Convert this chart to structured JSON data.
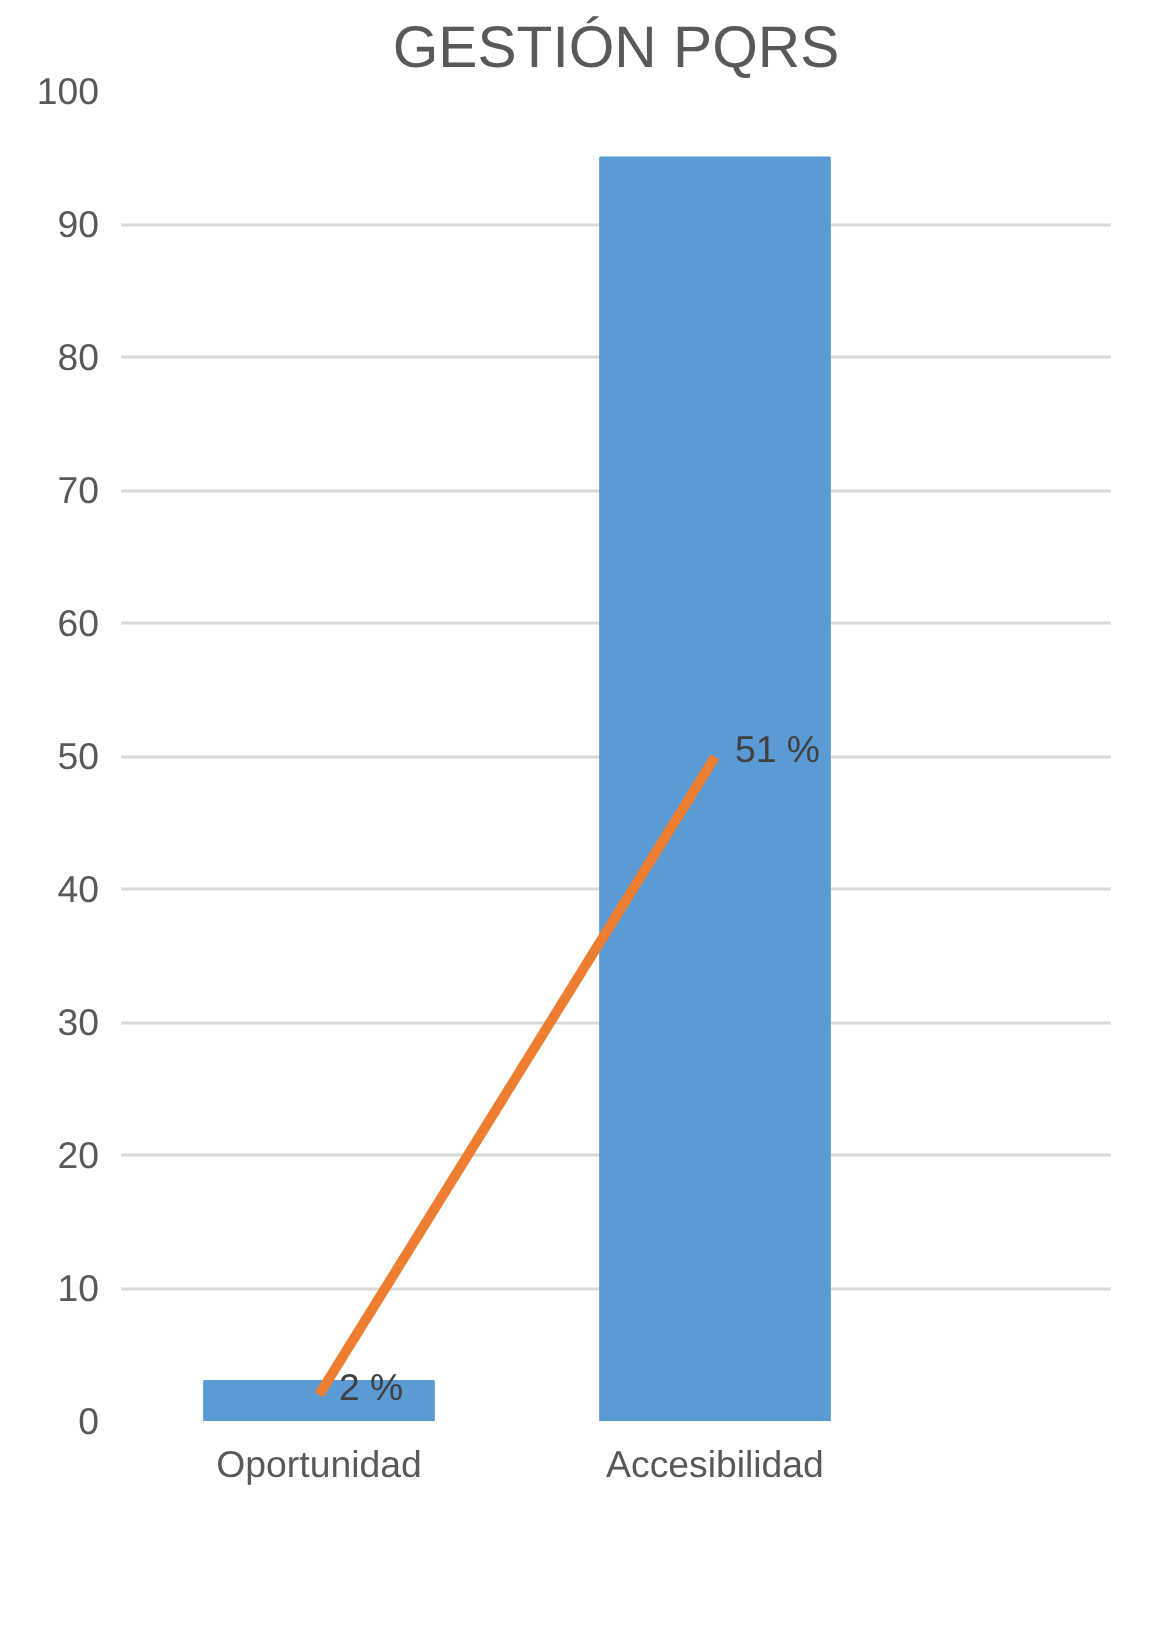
{
  "chart_data": {
    "type": "bar",
    "title": "GESTIÓN PQRS",
    "categories": [
      "Oportunidad",
      "Accesibilidad"
    ],
    "series": [
      {
        "color": "#5b9bd5",
        "values": [
          3,
          95
        ]
      },
      {
        "type": "line",
        "axis": "y2",
        "color": "#ed7d31",
        "values": [
          2,
          51
        ],
        "value_labels": [
          "2 %",
          "51 %"
        ]
      }
    ],
    "ylim": [
      0,
      100
    ],
    "yticks": [
      0,
      10,
      20,
      30,
      40,
      50,
      60,
      70,
      80,
      90,
      100
    ],
    "grid": "y"
  }
}
